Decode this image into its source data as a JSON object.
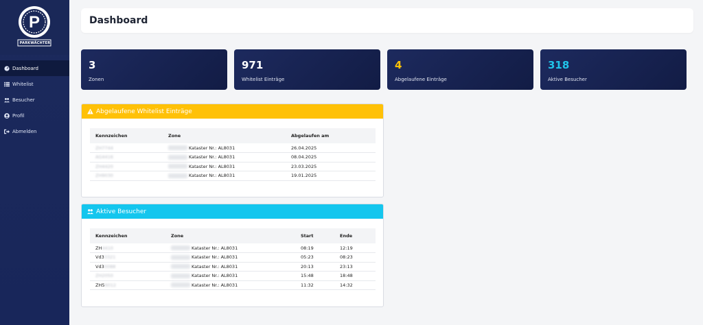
{
  "brand": {
    "logo_text": "PARKWÄCHTER",
    "logo_letter": "P"
  },
  "sidebar": {
    "items": [
      {
        "label": "Dashboard",
        "icon": "gauge-icon",
        "active": true
      },
      {
        "label": "Whitelist",
        "icon": "list-icon",
        "active": false
      },
      {
        "label": "Besucher",
        "icon": "users-icon",
        "active": false
      },
      {
        "label": "Profil",
        "icon": "user-circle-icon",
        "active": false
      },
      {
        "label": "Abmelden",
        "icon": "logout-icon",
        "active": false
      }
    ]
  },
  "header": {
    "title": "Dashboard"
  },
  "stats": [
    {
      "value": "3",
      "label": "Zonen",
      "color": "#ffffff"
    },
    {
      "value": "971",
      "label": "Whitelist Einträge",
      "color": "#ffffff"
    },
    {
      "value": "4",
      "label": "Abgelaufene Einträge",
      "color": "#ffc107"
    },
    {
      "value": "318",
      "label": "Aktive Besucher",
      "color": "#20c4ea"
    }
  ],
  "expired": {
    "title": "Abgelaufene Whitelist Einträge",
    "columns": [
      "Kennzeichen",
      "Zone",
      "Abgelaufen am"
    ],
    "rows": [
      {
        "plate": "ZH7744",
        "zone": "Kataster Nr.: AL8031",
        "date": "26.04.2025"
      },
      {
        "plate": "AG4416",
        "zone": "Kataster Nr.: AL8031",
        "date": "08.04.2025"
      },
      {
        "plate": "ZH4420",
        "zone": "Kataster Nr.: AL8031",
        "date": "23.03.2025"
      },
      {
        "plate": "ZH9030",
        "zone": "Kataster Nr.: AL8031",
        "date": "19.01.2025"
      }
    ]
  },
  "visitors": {
    "title": "Aktive Besucher",
    "columns": [
      "Kennzeichen",
      "Zone",
      "Start",
      "Ende"
    ],
    "rows": [
      {
        "plate": "ZH",
        "plate_hidden": "4410",
        "zone": "Kataster Nr.: AL8031",
        "start": "08:19",
        "end": "12:19"
      },
      {
        "plate": "Vd3",
        "plate_hidden": "3321",
        "zone": "Kataster Nr.: AL8031",
        "start": "05:23",
        "end": "08:23"
      },
      {
        "plate": "Vd3",
        "plate_hidden": "0088",
        "zone": "Kataster Nr.: AL8031",
        "start": "20:13",
        "end": "23:13"
      },
      {
        "plate": "",
        "plate_hidden": "ZH2050",
        "zone": "Kataster Nr.: AL8031",
        "start": "15:48",
        "end": "18:48"
      },
      {
        "plate": "ZH5",
        "plate_hidden": "6012",
        "zone": "Kataster Nr.: AL8031",
        "start": "11:32",
        "end": "14:32"
      }
    ]
  }
}
